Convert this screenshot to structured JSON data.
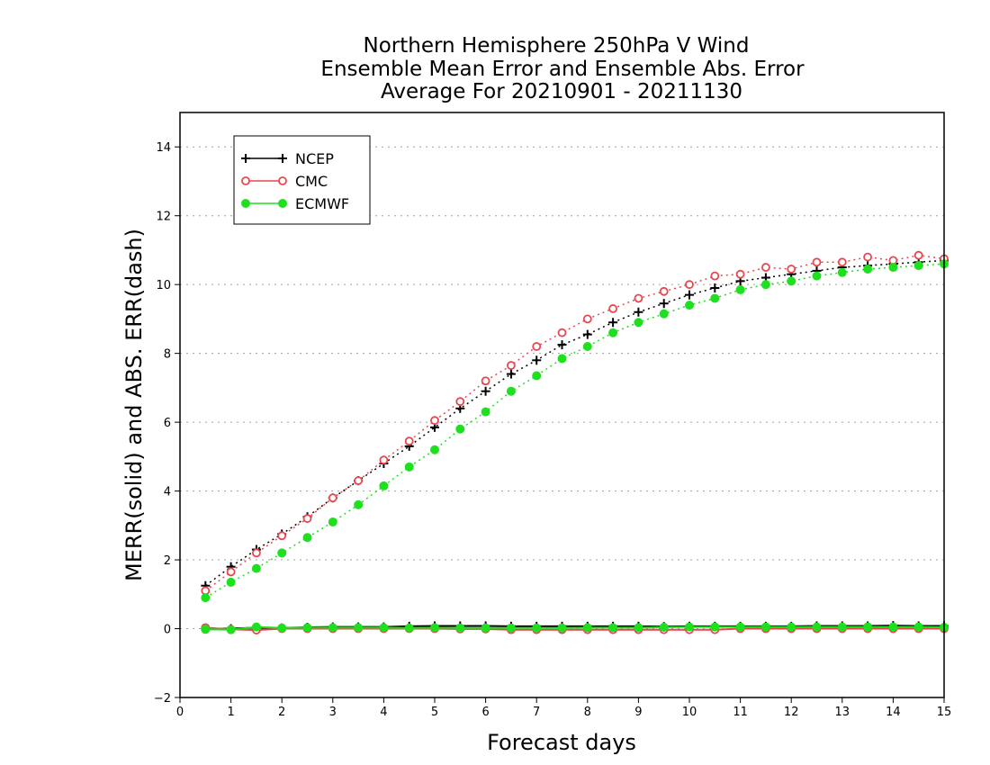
{
  "chart_data": {
    "type": "line",
    "title_lines": [
      "Northern Hemisphere 250hPa V Wind",
      "Ensemble Mean Error and Ensemble Abs. Error",
      "Average For 20210901 - 20211130"
    ],
    "xlabel": "Forecast days",
    "ylabel": "MERR(solid) and ABS. ERR(dash)",
    "xlim": [
      0,
      15
    ],
    "ylim": [
      -2,
      15
    ],
    "xticks": [
      "0",
      "1",
      "2",
      "3",
      "4",
      "5",
      "6",
      "7",
      "8",
      "9",
      "10",
      "11",
      "12",
      "13",
      "14",
      "15"
    ],
    "yticks": [
      "−2",
      "0",
      "2",
      "4",
      "6",
      "8",
      "10",
      "12",
      "14"
    ],
    "ytick_values": [
      -2,
      0,
      2,
      4,
      6,
      8,
      10,
      12,
      14
    ],
    "grid": "horizontal dotted",
    "legend_position": "top-left",
    "x": [
      0.5,
      1,
      1.5,
      2,
      2.5,
      3,
      3.5,
      4,
      4.5,
      5,
      5.5,
      6,
      6.5,
      7,
      7.5,
      8,
      8.5,
      9,
      9.5,
      10,
      10.5,
      11,
      11.5,
      12,
      12.5,
      13,
      13.5,
      14,
      14.5,
      15
    ],
    "series": [
      {
        "name": "NCEP",
        "color": "#000000",
        "marker": "plus",
        "abs_error": [
          1.25,
          1.8,
          2.3,
          2.75,
          3.25,
          3.8,
          4.3,
          4.8,
          5.3,
          5.85,
          6.4,
          6.9,
          7.4,
          7.8,
          8.25,
          8.55,
          8.9,
          9.2,
          9.45,
          9.7,
          9.9,
          10.1,
          10.2,
          10.3,
          10.4,
          10.5,
          10.55,
          10.6,
          10.65,
          10.7
        ],
        "mean_error": [
          0.0,
          0.0,
          0.03,
          0.02,
          0.04,
          0.05,
          0.05,
          0.05,
          0.07,
          0.08,
          0.08,
          0.08,
          0.07,
          0.07,
          0.07,
          0.07,
          0.07,
          0.07,
          0.06,
          0.07,
          0.07,
          0.07,
          0.07,
          0.07,
          0.08,
          0.08,
          0.08,
          0.09,
          0.08,
          0.08
        ]
      },
      {
        "name": "CMC",
        "color": "#e8474f",
        "marker": "open-circle",
        "abs_error": [
          1.1,
          1.65,
          2.2,
          2.7,
          3.2,
          3.8,
          4.3,
          4.9,
          5.45,
          6.05,
          6.6,
          7.2,
          7.65,
          8.2,
          8.6,
          9.0,
          9.3,
          9.6,
          9.8,
          10.0,
          10.25,
          10.3,
          10.5,
          10.45,
          10.65,
          10.65,
          10.8,
          10.7,
          10.85,
          10.75
        ],
        "mean_error": [
          0.03,
          -0.02,
          -0.04,
          0.0,
          0.0,
          0.0,
          0.0,
          0.0,
          0.0,
          0.0,
          -0.01,
          -0.01,
          -0.03,
          -0.03,
          -0.03,
          -0.03,
          -0.03,
          -0.03,
          -0.03,
          -0.03,
          -0.03,
          0.0,
          0.0,
          0.0,
          0.0,
          0.0,
          0.0,
          0.0,
          0.0,
          0.0
        ]
      },
      {
        "name": "ECMWF",
        "color": "#1ee01e",
        "marker": "filled-circle",
        "abs_error": [
          0.9,
          1.35,
          1.75,
          2.2,
          2.65,
          3.1,
          3.6,
          4.15,
          4.7,
          5.2,
          5.8,
          6.3,
          6.9,
          7.35,
          7.85,
          8.2,
          8.6,
          8.9,
          9.15,
          9.4,
          9.6,
          9.85,
          10.0,
          10.1,
          10.25,
          10.35,
          10.45,
          10.5,
          10.55,
          10.6
        ],
        "mean_error": [
          -0.02,
          -0.03,
          0.05,
          0.02,
          0.03,
          0.03,
          0.03,
          0.03,
          0.02,
          0.03,
          0.02,
          0.02,
          0.02,
          0.02,
          0.02,
          0.03,
          0.03,
          0.03,
          0.04,
          0.05,
          0.05,
          0.05,
          0.05,
          0.05,
          0.05,
          0.05,
          0.05,
          0.05,
          0.05,
          0.04
        ]
      }
    ]
  }
}
